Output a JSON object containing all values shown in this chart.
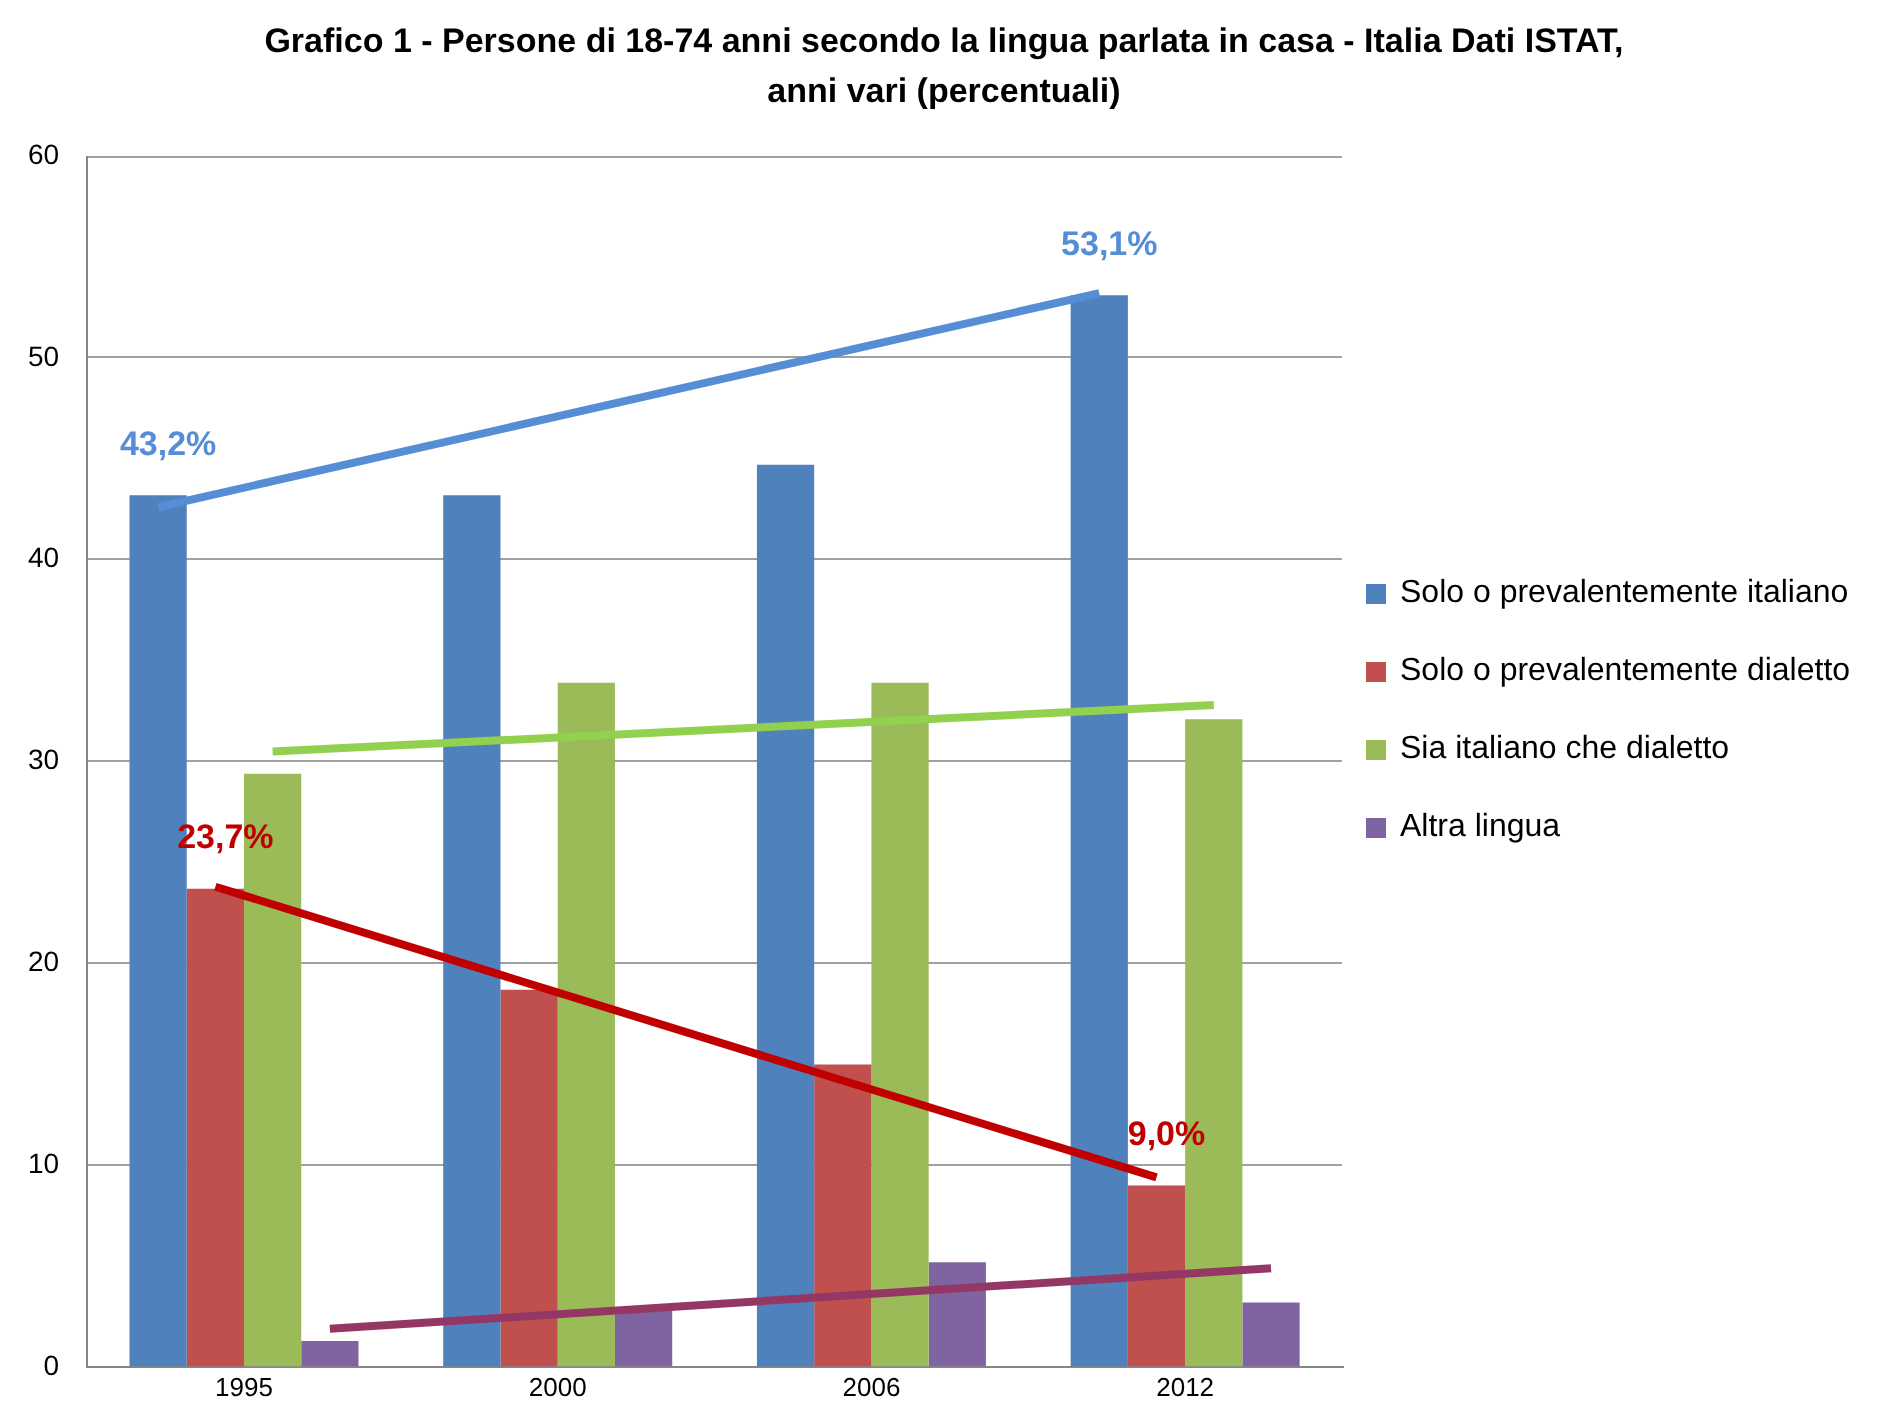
{
  "chart_data": {
    "type": "bar",
    "title": "Grafico 1 - Persone di 18-74 anni secondo la lingua parlata in casa - Italia Dati ISTAT,\nanni vari (percentuali)",
    "categories": [
      "1995",
      "2000",
      "2006",
      "2012"
    ],
    "series": [
      {
        "name": "Solo o prevalentemente italiano",
        "color": "#4f81bd",
        "values": [
          43.2,
          43.2,
          44.7,
          53.1
        ],
        "value_labels": [
          "43,2%",
          null,
          null,
          "53,1%"
        ]
      },
      {
        "name": "Solo o prevalentemente dialetto",
        "color": "#c0504d",
        "values": [
          23.7,
          18.7,
          15.0,
          9.0
        ],
        "value_labels": [
          "23,7%",
          null,
          null,
          "9,0%"
        ]
      },
      {
        "name": "Sia italiano che dialetto",
        "color": "#9bbb59",
        "values": [
          29.4,
          33.9,
          33.9,
          32.1
        ]
      },
      {
        "name": "Altra lingua",
        "color": "#8064a2",
        "values": [
          1.3,
          2.8,
          5.2,
          3.2
        ]
      },
      {
        "type": "line",
        "color": "#558ed5",
        "values": [
          42.6,
          null,
          null,
          53.2
        ]
      },
      {
        "type": "line",
        "color": "#c00000",
        "values": [
          23.8,
          null,
          null,
          9.4
        ]
      },
      {
        "type": "line",
        "color": "#92d050",
        "values": [
          30.5,
          null,
          null,
          32.8
        ]
      },
      {
        "type": "line",
        "color": "#953765",
        "values": [
          1.9,
          null,
          null,
          4.9
        ]
      }
    ],
    "ylim": [
      0,
      60
    ],
    "yticks": [
      0,
      10,
      20,
      30,
      40,
      50,
      60
    ],
    "grid": "y",
    "legend": "right",
    "marker": "none"
  }
}
